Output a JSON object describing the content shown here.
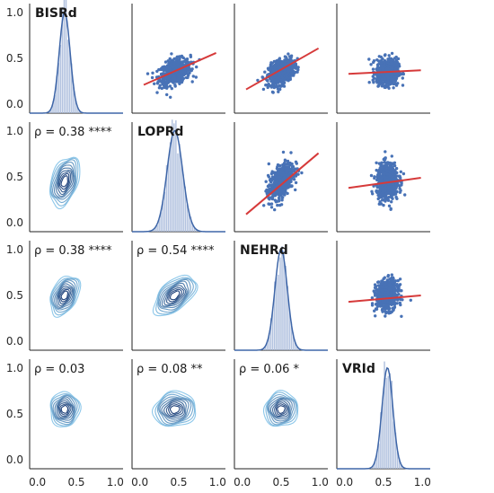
{
  "chart_data": {
    "type": "pairplot",
    "variables": [
      "BISRd",
      "LOPRd",
      "NEHRd",
      "VRId"
    ],
    "axis_range": [
      -0.1,
      1.1
    ],
    "ticks": [
      "0.0",
      "0.5",
      "1.0"
    ],
    "tick_values": [
      0.0,
      0.5,
      1.0
    ],
    "colors": {
      "scatter": "#4872b6",
      "regression": "#d63a3a",
      "histogram": "#aabbdc",
      "kde_line": "#3e66a8",
      "contour_dark": "#1d3f78",
      "contour_light": "#8ec8ea",
      "axis": "#222222"
    },
    "distributions": [
      {
        "variable": "BISRd",
        "mean": 0.35,
        "sd": 0.07
      },
      {
        "variable": "LOPRd",
        "mean": 0.45,
        "sd": 0.1
      },
      {
        "variable": "NEHRd",
        "mean": 0.5,
        "sd": 0.08
      },
      {
        "variable": "VRId",
        "mean": 0.55,
        "sd": 0.07
      }
    ],
    "correlations": [
      {
        "pair": [
          "BISRd",
          "LOPRd"
        ],
        "label": "ρ = 0.38 ****",
        "rho": 0.38
      },
      {
        "pair": [
          "BISRd",
          "NEHRd"
        ],
        "label": "ρ = 0.38 ****",
        "rho": 0.38
      },
      {
        "pair": [
          "LOPRd",
          "NEHRd"
        ],
        "label": "ρ = 0.54 ****",
        "rho": 0.54
      },
      {
        "pair": [
          "BISRd",
          "VRId"
        ],
        "label": "ρ = 0.03",
        "rho": 0.03
      },
      {
        "pair": [
          "LOPRd",
          "VRId"
        ],
        "label": "ρ = 0.08 **",
        "rho": 0.08
      },
      {
        "pair": [
          "NEHRd",
          "VRId"
        ],
        "label": "ρ = 0.06 *",
        "rho": 0.06
      }
    ],
    "regressions": [
      {
        "x": "LOPRd",
        "y": "BISRd",
        "x_start": 0.05,
        "y_start": 0.21,
        "x_end": 0.98,
        "y_end": 0.56
      },
      {
        "x": "NEHRd",
        "y": "BISRd",
        "x_start": 0.05,
        "y_start": 0.16,
        "x_end": 0.98,
        "y_end": 0.61
      },
      {
        "x": "VRId",
        "y": "BISRd",
        "x_start": 0.05,
        "y_start": 0.33,
        "x_end": 0.98,
        "y_end": 0.37
      },
      {
        "x": "NEHRd",
        "y": "LOPRd",
        "x_start": 0.05,
        "y_start": 0.09,
        "x_end": 0.98,
        "y_end": 0.76
      },
      {
        "x": "VRId",
        "y": "LOPRd",
        "x_start": 0.05,
        "y_start": 0.38,
        "x_end": 0.98,
        "y_end": 0.49
      },
      {
        "x": "VRId",
        "y": "NEHRd",
        "x_start": 0.05,
        "y_start": 0.43,
        "x_end": 0.98,
        "y_end": 0.5
      }
    ]
  }
}
